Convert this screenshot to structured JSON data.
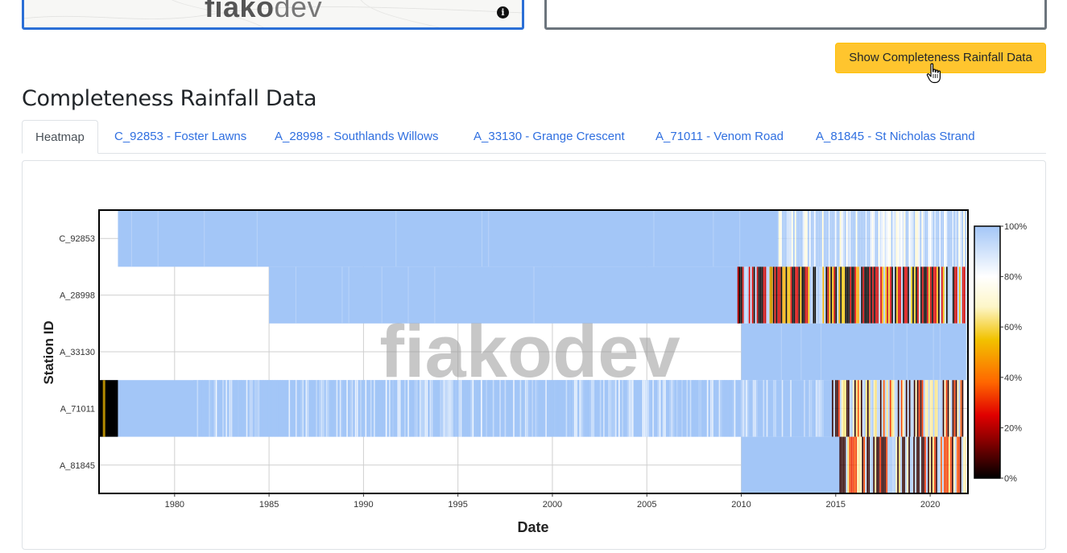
{
  "top": {
    "logo_main": "fiako",
    "logo_dev": "dev",
    "info_icon": "info-icon"
  },
  "action_button": {
    "label": "Show Completeness Rainfall Data"
  },
  "section": {
    "title": "Completeness Rainfall Data"
  },
  "tabs": [
    {
      "label": "Heatmap",
      "active": true
    },
    {
      "label": "C_92853 - Foster Lawns",
      "active": false
    },
    {
      "label": "A_28998 - Southlands Willows",
      "active": false
    },
    {
      "label": "A_33130 - Grange Crescent",
      "active": false
    },
    {
      "label": "A_71011 - Venom Road",
      "active": false
    },
    {
      "label": "A_81845 - St Nicholas Strand",
      "active": false
    }
  ],
  "colors": {
    "accent_blue": "#2f6fe0",
    "button_yellow": "#ffc52e",
    "full_completeness": "#a3c6f7"
  },
  "chart_data": {
    "type": "heatmap",
    "xlabel": "Date",
    "ylabel": "Station ID",
    "watermark": "fiakodev",
    "x_ticks": [
      "1980",
      "1985",
      "1990",
      "1995",
      "2000",
      "2005",
      "2010",
      "2015",
      "2020"
    ],
    "xlim": [
      1976,
      2022
    ],
    "stations": [
      "C_92853",
      "A_28998",
      "A_33130",
      "A_71011",
      "A_81845"
    ],
    "colorbar": {
      "ticks": [
        "100%",
        "80%",
        "60%",
        "40%",
        "20%",
        "0%"
      ],
      "range": [
        0,
        100
      ],
      "colormap": [
        "#000000",
        "#8b0000",
        "#e00000",
        "#ff6600",
        "#f2c200",
        "#fdf6c8",
        "#ffffff",
        "#a3c6f7"
      ]
    },
    "rows": [
      {
        "station": "C_92853",
        "start": 1977.0,
        "end": 2021.9,
        "full_until": 2011.9,
        "recent_pattern": "mostly_high_some_low"
      },
      {
        "station": "A_28998",
        "start": 1985.0,
        "end": 2021.9,
        "full_until": 2009.8,
        "recent_pattern": "very_low"
      },
      {
        "station": "A_33130",
        "start": 2010.0,
        "end": 2021.9,
        "full_until": 2021.9,
        "recent_pattern": "full"
      },
      {
        "station": "A_71011",
        "start": 1976.0,
        "end": 2021.7,
        "full_until": 2014.8,
        "recent_pattern": "low"
      },
      {
        "station": "A_81845",
        "start": 2010.0,
        "end": 2021.9,
        "full_until": 2015.2,
        "recent_pattern": "low"
      }
    ]
  }
}
